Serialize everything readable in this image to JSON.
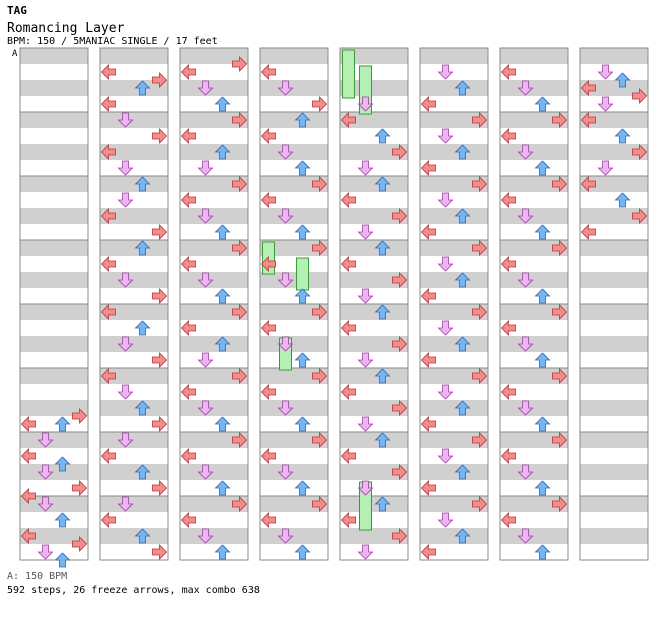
{
  "header": {
    "tag": "TAG",
    "title": "Romancing Layer",
    "info": "BPM: 150 / 5MANIAC SINGLE / 17 feet"
  },
  "bpm_marker": "A",
  "footer": {
    "bpm_legend": "A: 150 BPM",
    "stats": "592 steps, 26 freeze arrows, max combo 638"
  },
  "colors": {
    "left": "#f08c8c",
    "down": "#f0b4f0",
    "up": "#78b4f0",
    "right": "#f08c8c",
    "freeze": "#b4f0b4",
    "stripe": "#d0d0d0",
    "border": "#888888"
  },
  "chart": {
    "columns": 8,
    "beats_per_column": 32,
    "notes": [
      [
        0,
        23,
        0
      ],
      [
        0,
        23,
        2
      ],
      [
        0,
        22.5,
        3
      ],
      [
        0,
        24,
        1
      ],
      [
        0,
        25,
        0
      ],
      [
        0,
        25.5,
        2
      ],
      [
        0,
        26,
        1
      ],
      [
        0,
        27,
        3
      ],
      [
        0,
        27.5,
        0
      ],
      [
        0,
        28,
        1
      ],
      [
        0,
        29,
        2
      ],
      [
        0,
        30,
        0
      ],
      [
        0,
        30.5,
        3
      ],
      [
        0,
        31,
        1
      ],
      [
        0,
        31.5,
        2
      ],
      [
        1,
        1,
        0
      ],
      [
        1,
        1.5,
        3
      ],
      [
        1,
        2,
        2
      ],
      [
        1,
        3,
        0
      ],
      [
        1,
        4,
        1
      ],
      [
        1,
        5,
        3
      ],
      [
        1,
        6,
        0
      ],
      [
        1,
        7,
        1
      ],
      [
        1,
        8,
        2
      ],
      [
        1,
        9,
        1
      ],
      [
        1,
        10,
        0
      ],
      [
        1,
        11,
        3
      ],
      [
        1,
        12,
        2
      ],
      [
        1,
        13,
        0
      ],
      [
        1,
        14,
        1
      ],
      [
        1,
        15,
        3
      ],
      [
        1,
        16,
        0
      ],
      [
        1,
        17,
        2
      ],
      [
        1,
        18,
        1
      ],
      [
        1,
        19,
        3
      ],
      [
        1,
        20,
        0
      ],
      [
        1,
        21,
        1
      ],
      [
        1,
        22,
        2
      ],
      [
        1,
        23,
        3
      ],
      [
        1,
        24,
        1
      ],
      [
        1,
        25,
        0
      ],
      [
        1,
        26,
        2
      ],
      [
        1,
        27,
        3
      ],
      [
        1,
        28,
        1
      ],
      [
        1,
        29,
        0
      ],
      [
        1,
        30,
        2
      ],
      [
        1,
        31,
        3
      ],
      [
        2,
        0.5,
        3
      ],
      [
        2,
        1,
        0
      ],
      [
        2,
        2,
        1
      ],
      [
        2,
        3,
        2
      ],
      [
        2,
        4,
        3
      ],
      [
        2,
        5,
        0
      ],
      [
        2,
        6,
        2
      ],
      [
        2,
        7,
        1
      ],
      [
        2,
        8,
        3
      ],
      [
        2,
        9,
        0
      ],
      [
        2,
        10,
        1
      ],
      [
        2,
        11,
        2
      ],
      [
        2,
        12,
        3
      ],
      [
        2,
        13,
        0
      ],
      [
        2,
        14,
        1
      ],
      [
        2,
        15,
        2
      ],
      [
        2,
        16,
        3
      ],
      [
        2,
        17,
        0
      ],
      [
        2,
        18,
        2
      ],
      [
        2,
        19,
        1
      ],
      [
        2,
        20,
        3
      ],
      [
        2,
        21,
        0
      ],
      [
        2,
        22,
        1
      ],
      [
        2,
        23,
        2
      ],
      [
        2,
        24,
        3
      ],
      [
        2,
        25,
        0
      ],
      [
        2,
        26,
        1
      ],
      [
        2,
        27,
        2
      ],
      [
        2,
        28,
        3
      ],
      [
        2,
        29,
        0
      ],
      [
        2,
        30,
        1
      ],
      [
        2,
        31,
        2
      ],
      [
        3,
        1,
        0
      ],
      [
        3,
        2,
        1
      ],
      [
        3,
        3,
        3
      ],
      [
        3,
        4,
        2
      ],
      [
        3,
        5,
        0
      ],
      [
        3,
        6,
        1
      ],
      [
        3,
        7,
        2
      ],
      [
        3,
        8,
        3
      ],
      [
        3,
        9,
        0
      ],
      [
        3,
        10,
        1
      ],
      [
        3,
        11,
        2
      ],
      [
        3,
        12,
        3
      ],
      [
        3,
        13,
        0
      ],
      [
        3,
        14,
        1
      ],
      [
        3,
        15,
        2
      ],
      [
        3,
        16,
        3
      ],
      [
        3,
        17,
        0
      ],
      [
        3,
        18,
        1
      ],
      [
        3,
        19,
        2
      ],
      [
        3,
        20,
        3
      ],
      [
        3,
        21,
        0
      ],
      [
        3,
        22,
        1
      ],
      [
        3,
        23,
        2
      ],
      [
        3,
        24,
        3
      ],
      [
        3,
        25,
        0
      ],
      [
        3,
        26,
        1
      ],
      [
        3,
        27,
        2
      ],
      [
        3,
        28,
        3
      ],
      [
        3,
        29,
        0
      ],
      [
        3,
        30,
        1
      ],
      [
        3,
        31,
        2
      ],
      [
        4,
        3,
        1
      ],
      [
        4,
        4,
        0
      ],
      [
        4,
        5,
        2
      ],
      [
        4,
        6,
        3
      ],
      [
        4,
        7,
        1
      ],
      [
        4,
        8,
        2
      ],
      [
        4,
        9,
        0
      ],
      [
        4,
        10,
        3
      ],
      [
        4,
        11,
        1
      ],
      [
        4,
        12,
        2
      ],
      [
        4,
        13,
        0
      ],
      [
        4,
        14,
        3
      ],
      [
        4,
        15,
        1
      ],
      [
        4,
        16,
        2
      ],
      [
        4,
        17,
        0
      ],
      [
        4,
        18,
        3
      ],
      [
        4,
        19,
        1
      ],
      [
        4,
        20,
        2
      ],
      [
        4,
        21,
        0
      ],
      [
        4,
        22,
        3
      ],
      [
        4,
        23,
        1
      ],
      [
        4,
        24,
        2
      ],
      [
        4,
        25,
        0
      ],
      [
        4,
        26,
        3
      ],
      [
        4,
        27,
        1
      ],
      [
        4,
        28,
        2
      ],
      [
        4,
        29,
        0
      ],
      [
        4,
        30,
        3
      ],
      [
        4,
        31,
        1
      ],
      [
        5,
        1,
        1
      ],
      [
        5,
        2,
        2
      ],
      [
        5,
        3,
        0
      ],
      [
        5,
        4,
        3
      ],
      [
        5,
        5,
        1
      ],
      [
        5,
        6,
        2
      ],
      [
        5,
        7,
        0
      ],
      [
        5,
        8,
        3
      ],
      [
        5,
        9,
        1
      ],
      [
        5,
        10,
        2
      ],
      [
        5,
        11,
        0
      ],
      [
        5,
        12,
        3
      ],
      [
        5,
        13,
        1
      ],
      [
        5,
        14,
        2
      ],
      [
        5,
        15,
        0
      ],
      [
        5,
        16,
        3
      ],
      [
        5,
        17,
        1
      ],
      [
        5,
        18,
        2
      ],
      [
        5,
        19,
        0
      ],
      [
        5,
        20,
        3
      ],
      [
        5,
        21,
        1
      ],
      [
        5,
        22,
        2
      ],
      [
        5,
        23,
        0
      ],
      [
        5,
        24,
        3
      ],
      [
        5,
        25,
        1
      ],
      [
        5,
        26,
        2
      ],
      [
        5,
        27,
        0
      ],
      [
        5,
        28,
        3
      ],
      [
        5,
        29,
        1
      ],
      [
        5,
        30,
        2
      ],
      [
        5,
        31,
        0
      ],
      [
        6,
        1,
        0
      ],
      [
        6,
        2,
        1
      ],
      [
        6,
        3,
        2
      ],
      [
        6,
        4,
        3
      ],
      [
        6,
        5,
        0
      ],
      [
        6,
        6,
        1
      ],
      [
        6,
        7,
        2
      ],
      [
        6,
        8,
        3
      ],
      [
        6,
        9,
        0
      ],
      [
        6,
        10,
        1
      ],
      [
        6,
        11,
        2
      ],
      [
        6,
        12,
        3
      ],
      [
        6,
        13,
        0
      ],
      [
        6,
        14,
        1
      ],
      [
        6,
        15,
        2
      ],
      [
        6,
        16,
        3
      ],
      [
        6,
        17,
        0
      ],
      [
        6,
        18,
        1
      ],
      [
        6,
        19,
        2
      ],
      [
        6,
        20,
        3
      ],
      [
        6,
        21,
        0
      ],
      [
        6,
        22,
        1
      ],
      [
        6,
        23,
        2
      ],
      [
        6,
        24,
        3
      ],
      [
        6,
        25,
        0
      ],
      [
        6,
        26,
        1
      ],
      [
        6,
        27,
        2
      ],
      [
        6,
        28,
        3
      ],
      [
        6,
        29,
        0
      ],
      [
        6,
        30,
        1
      ],
      [
        6,
        31,
        2
      ],
      [
        7,
        1,
        1
      ],
      [
        7,
        1.5,
        2
      ],
      [
        7,
        2,
        0
      ],
      [
        7,
        2.5,
        3
      ],
      [
        7,
        3,
        1
      ],
      [
        7,
        4,
        0
      ],
      [
        7,
        5,
        2
      ],
      [
        7,
        6,
        3
      ],
      [
        7,
        7,
        1
      ],
      [
        7,
        8,
        0
      ],
      [
        7,
        9,
        2
      ],
      [
        7,
        10,
        3
      ],
      [
        7,
        11,
        0
      ]
    ],
    "freezes": [
      [
        3,
        12,
        14,
        0
      ],
      [
        3,
        13,
        15,
        2
      ],
      [
        3,
        18,
        20,
        1
      ],
      [
        4,
        0,
        3,
        0
      ],
      [
        4,
        1,
        4,
        1
      ],
      [
        4,
        27,
        30,
        1
      ]
    ]
  }
}
